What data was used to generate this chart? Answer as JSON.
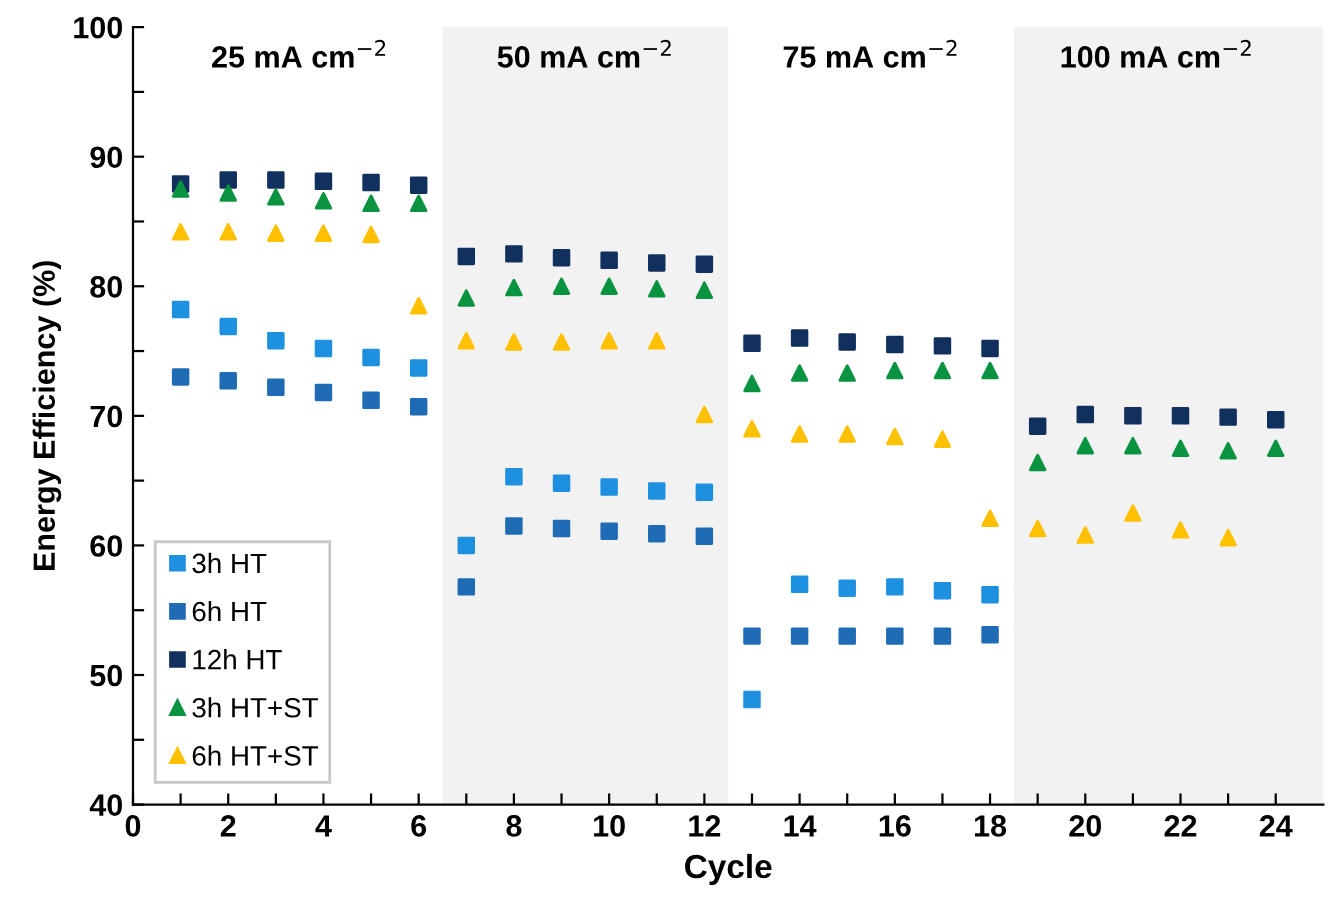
{
  "chart_data": {
    "type": "scatter",
    "xlabel": "Cycle",
    "ylabel": "Energy Efficiency (%)",
    "x": [
      1,
      2,
      3,
      4,
      5,
      6,
      7,
      8,
      9,
      10,
      11,
      12,
      13,
      14,
      15,
      16,
      17,
      18,
      19,
      20,
      21,
      22,
      23,
      24
    ],
    "series": [
      {
        "name": "3h HT",
        "color": "#1e90e0",
        "marker": "square",
        "values": [
          78.2,
          76.9,
          75.8,
          75.2,
          74.5,
          73.7,
          60.0,
          65.3,
          64.8,
          64.5,
          64.2,
          64.1,
          48.1,
          57.0,
          56.7,
          56.8,
          56.5,
          56.2,
          null,
          null,
          null,
          null,
          null,
          null
        ]
      },
      {
        "name": "6h HT",
        "color": "#1f6cb5",
        "marker": "square",
        "values": [
          73.0,
          72.7,
          72.2,
          71.8,
          71.2,
          70.7,
          56.8,
          61.5,
          61.3,
          61.1,
          60.9,
          60.7,
          53.0,
          53.0,
          53.0,
          53.0,
          53.0,
          53.1,
          null,
          null,
          null,
          null,
          null,
          null
        ]
      },
      {
        "name": "12h HT",
        "color": "#12305e",
        "marker": "square",
        "values": [
          87.9,
          88.2,
          88.2,
          88.1,
          88.0,
          87.8,
          82.3,
          82.5,
          82.2,
          82.0,
          81.8,
          81.7,
          75.6,
          76.0,
          75.7,
          75.5,
          75.4,
          75.2,
          69.2,
          70.1,
          70.0,
          70.0,
          69.9,
          69.7
        ]
      },
      {
        "name": "3h HT+ST",
        "color": "#0a9340",
        "marker": "triangle",
        "values": [
          87.5,
          87.2,
          86.9,
          86.6,
          86.4,
          86.4,
          79.1,
          79.9,
          80.0,
          80.0,
          79.8,
          79.7,
          72.5,
          73.3,
          73.3,
          73.5,
          73.5,
          73.5,
          66.4,
          67.7,
          67.7,
          67.5,
          67.3,
          67.5
        ]
      },
      {
        "name": "6h HT+ST",
        "color": "#ffc000",
        "marker": "triangle",
        "values": [
          84.2,
          84.2,
          84.1,
          84.1,
          84.0,
          78.5,
          75.8,
          75.7,
          75.7,
          75.8,
          75.8,
          70.1,
          69.0,
          68.6,
          68.6,
          68.4,
          68.2,
          62.1,
          61.3,
          60.8,
          62.5,
          61.2,
          60.6,
          null
        ]
      }
    ],
    "bands": [
      {
        "axis": "x",
        "from": 6.5,
        "to": 12.5,
        "color": "#f2f2f2"
      },
      {
        "axis": "x",
        "from": 18.5,
        "to": 25,
        "color": "#f2f2f2"
      }
    ],
    "annotations": [
      "25 mA cm$^{−2}$",
      "50 mA cm$^{−2}$",
      "75 mA cm$^{−2}$",
      "100 mA cm$^{−2}$"
    ],
    "xlim": [
      0,
      25
    ],
    "xticks": [
      0,
      {
        "value": 1,
        "label": null
      },
      2,
      {
        "value": 3,
        "label": null
      },
      4,
      {
        "value": 5,
        "label": null
      },
      6,
      {
        "value": 7,
        "label": null
      },
      8,
      {
        "value": 9,
        "label": null
      },
      10,
      {
        "value": 11,
        "label": null
      },
      12,
      {
        "value": 13,
        "label": null
      },
      14,
      {
        "value": 15,
        "label": null
      },
      16,
      {
        "value": 17,
        "label": null
      },
      18,
      {
        "value": 19,
        "label": null
      },
      20,
      {
        "value": 21,
        "label": null
      },
      22,
      {
        "value": 23,
        "label": null
      },
      24
    ],
    "ylim": [
      40,
      100
    ],
    "yticks": [
      40,
      {
        "value": 45,
        "label": null
      },
      50,
      {
        "value": 55,
        "label": null
      },
      60,
      {
        "value": 65,
        "label": null
      },
      70,
      {
        "value": 75,
        "label": null
      },
      80,
      {
        "value": 85,
        "label": null
      },
      90,
      {
        "value": 95,
        "label": null
      },
      100
    ],
    "legend": "bottom left",
    "grid": false
  }
}
